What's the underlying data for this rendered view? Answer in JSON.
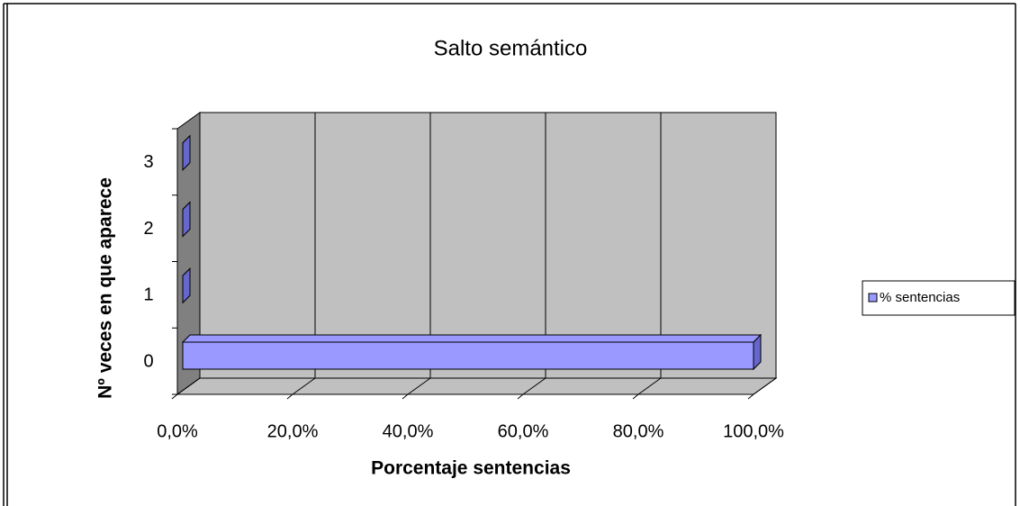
{
  "chart_data": {
    "type": "bar3d_horizontal",
    "title": "Salto semántico",
    "x_label": "Porcentaje sentencias",
    "y_label": "Nº veces en que aparece",
    "categories": [
      "0",
      "1",
      "2",
      "3"
    ],
    "series": [
      {
        "name": "% sentencias",
        "color": "#9999ff",
        "values": [
          100,
          0,
          0,
          0
        ]
      }
    ],
    "xlim": [
      0,
      100
    ],
    "xticks": [
      {
        "value": 0,
        "label": "0,0%"
      },
      {
        "value": 20,
        "label": "20,0%"
      },
      {
        "value": 40,
        "label": "40,0%"
      },
      {
        "value": 60,
        "label": "60,0%"
      },
      {
        "value": 80,
        "label": "80,0%"
      },
      {
        "value": 100,
        "label": "100,0%"
      }
    ],
    "grid": true,
    "legend": "right"
  }
}
